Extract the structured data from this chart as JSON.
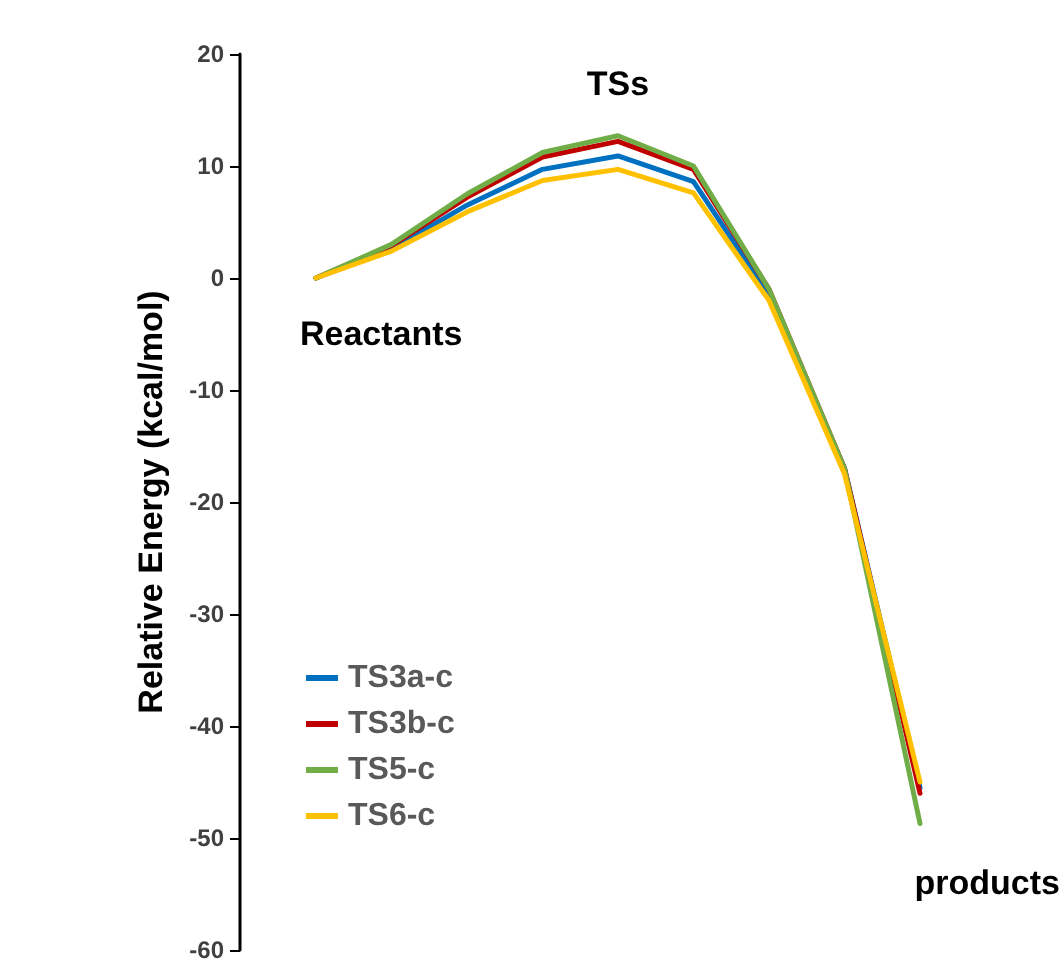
{
  "chart_data": {
    "type": "line",
    "ylabel": "Relative Energy (kcal/mol)",
    "categories": [
      null,
      null,
      null,
      null,
      null,
      null,
      null,
      null,
      null
    ],
    "series": [
      {
        "name": "TS3a-c",
        "color": "#0070c0",
        "values": [
          0,
          2.6,
          6.5,
          9.7,
          10.9,
          8.6,
          -1.5,
          -17,
          -45.5
        ]
      },
      {
        "name": "TS3b-c",
        "color": "#c00000",
        "values": [
          0,
          2.9,
          7.2,
          10.8,
          12.2,
          9.7,
          -1,
          -17,
          -46
        ]
      },
      {
        "name": "TS5-c",
        "color": "#70ad47",
        "values": [
          0,
          3,
          7.5,
          11.2,
          12.7,
          10,
          -1,
          -17,
          -48.7
        ]
      },
      {
        "name": "TS6-c",
        "color": "#ffc000",
        "values": [
          0,
          2.4,
          5.9,
          8.7,
          9.7,
          7.6,
          -2,
          -17.5,
          -45
        ]
      }
    ],
    "ylim": [
      -60,
      20
    ],
    "yticks": [
      -60,
      -50,
      -40,
      -30,
      -20,
      -10,
      0,
      10,
      20
    ],
    "grid": false,
    "legend": "bottom left",
    "marker": "none",
    "line_style": "solid",
    "tick_labels": "y",
    "annotations": [
      "Reactants",
      "TSs",
      "products"
    ]
  }
}
